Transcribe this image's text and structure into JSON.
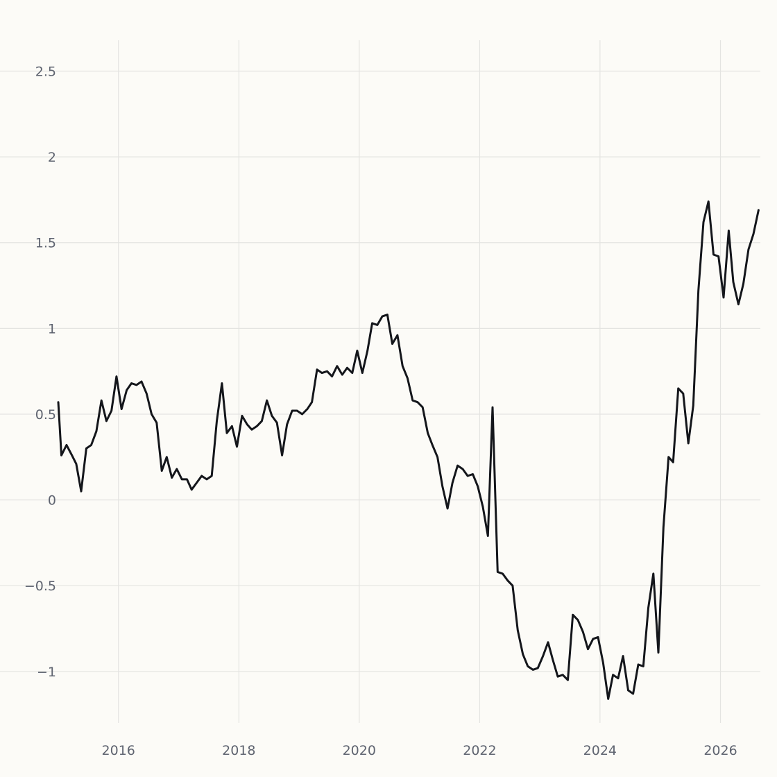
{
  "chart_data": {
    "type": "line",
    "title": "",
    "xlabel": "",
    "ylabel": "",
    "x_axis": {
      "type": "date",
      "range": [
        "2015-01-01",
        "2026-08-31"
      ],
      "tick_labels": [
        "2016",
        "2018",
        "2020",
        "2022",
        "2024",
        "2026"
      ]
    },
    "y_axis": {
      "range": [
        -1.3,
        2.68
      ],
      "ticks": [
        -1,
        -0.5,
        0,
        0.5,
        1,
        1.5,
        2,
        2.5
      ],
      "tick_labels": [
        "−1",
        "−0.5",
        "0",
        "0.5",
        "1",
        "1.5",
        "2",
        "2.5"
      ]
    },
    "grid": true,
    "legend": "none",
    "colors": {
      "background": "#fcfbf7",
      "line": "#14161b",
      "grid": "#e4e4e1",
      "tick_text": "#5f6470"
    },
    "series": [
      {
        "points": [
          [
            "2015-01-01",
            0.57
          ],
          [
            "2015-01-20",
            0.26
          ],
          [
            "2015-02-20",
            0.32
          ],
          [
            "2015-03-25",
            0.26
          ],
          [
            "2015-04-20",
            0.21
          ],
          [
            "2015-05-20",
            0.05
          ],
          [
            "2015-06-20",
            0.3
          ],
          [
            "2015-07-20",
            0.32
          ],
          [
            "2015-08-20",
            0.4
          ],
          [
            "2015-09-20",
            0.58
          ],
          [
            "2015-10-20",
            0.46
          ],
          [
            "2015-11-20",
            0.52
          ],
          [
            "2015-12-20",
            0.72
          ],
          [
            "2016-01-20",
            0.53
          ],
          [
            "2016-02-20",
            0.64
          ],
          [
            "2016-03-20",
            0.68
          ],
          [
            "2016-04-20",
            0.67
          ],
          [
            "2016-05-20",
            0.69
          ],
          [
            "2016-06-20",
            0.62
          ],
          [
            "2016-07-20",
            0.5
          ],
          [
            "2016-08-20",
            0.45
          ],
          [
            "2016-09-20",
            0.17
          ],
          [
            "2016-10-20",
            0.25
          ],
          [
            "2016-11-20",
            0.13
          ],
          [
            "2016-12-20",
            0.18
          ],
          [
            "2017-01-20",
            0.12
          ],
          [
            "2017-02-20",
            0.12
          ],
          [
            "2017-03-20",
            0.06
          ],
          [
            "2017-04-20",
            0.1
          ],
          [
            "2017-05-20",
            0.14
          ],
          [
            "2017-06-20",
            0.12
          ],
          [
            "2017-07-20",
            0.14
          ],
          [
            "2017-08-20",
            0.46
          ],
          [
            "2017-09-20",
            0.68
          ],
          [
            "2017-10-20",
            0.39
          ],
          [
            "2017-11-20",
            0.43
          ],
          [
            "2017-12-20",
            0.31
          ],
          [
            "2018-01-20",
            0.49
          ],
          [
            "2018-02-20",
            0.44
          ],
          [
            "2018-03-20",
            0.41
          ],
          [
            "2018-04-20",
            0.43
          ],
          [
            "2018-05-20",
            0.46
          ],
          [
            "2018-06-20",
            0.58
          ],
          [
            "2018-07-20",
            0.49
          ],
          [
            "2018-08-20",
            0.45
          ],
          [
            "2018-09-20",
            0.26
          ],
          [
            "2018-10-20",
            0.44
          ],
          [
            "2018-11-20",
            0.52
          ],
          [
            "2018-12-20",
            0.52
          ],
          [
            "2019-01-20",
            0.5
          ],
          [
            "2019-02-20",
            0.53
          ],
          [
            "2019-03-20",
            0.57
          ],
          [
            "2019-04-20",
            0.76
          ],
          [
            "2019-05-20",
            0.74
          ],
          [
            "2019-06-20",
            0.75
          ],
          [
            "2019-07-20",
            0.72
          ],
          [
            "2019-08-20",
            0.78
          ],
          [
            "2019-09-20",
            0.73
          ],
          [
            "2019-10-20",
            0.77
          ],
          [
            "2019-11-20",
            0.74
          ],
          [
            "2019-12-20",
            0.87
          ],
          [
            "2020-01-20",
            0.74
          ],
          [
            "2020-02-20",
            0.87
          ],
          [
            "2020-03-20",
            1.03
          ],
          [
            "2020-04-20",
            1.02
          ],
          [
            "2020-05-20",
            1.07
          ],
          [
            "2020-06-20",
            1.08
          ],
          [
            "2020-07-20",
            0.91
          ],
          [
            "2020-08-20",
            0.96
          ],
          [
            "2020-09-20",
            0.78
          ],
          [
            "2020-10-20",
            0.71
          ],
          [
            "2020-11-20",
            0.58
          ],
          [
            "2020-12-20",
            0.57
          ],
          [
            "2021-01-20",
            0.54
          ],
          [
            "2021-02-20",
            0.39
          ],
          [
            "2021-03-20",
            0.32
          ],
          [
            "2021-04-20",
            0.25
          ],
          [
            "2021-05-20",
            0.08
          ],
          [
            "2021-06-20",
            -0.05
          ],
          [
            "2021-07-20",
            0.1
          ],
          [
            "2021-08-20",
            0.2
          ],
          [
            "2021-09-20",
            0.18
          ],
          [
            "2021-10-20",
            0.14
          ],
          [
            "2021-11-20",
            0.15
          ],
          [
            "2021-12-20",
            0.08
          ],
          [
            "2022-01-20",
            -0.04
          ],
          [
            "2022-02-20",
            -0.21
          ],
          [
            "2022-03-20",
            0.54
          ],
          [
            "2022-04-20",
            -0.42
          ],
          [
            "2022-05-20",
            -0.43
          ],
          [
            "2022-06-20",
            -0.47
          ],
          [
            "2022-07-20",
            -0.5
          ],
          [
            "2022-08-20",
            -0.76
          ],
          [
            "2022-09-20",
            -0.9
          ],
          [
            "2022-10-20",
            -0.97
          ],
          [
            "2022-11-20",
            -0.99
          ],
          [
            "2022-12-20",
            -0.98
          ],
          [
            "2023-01-20",
            -0.91
          ],
          [
            "2023-02-20",
            -0.83
          ],
          [
            "2023-03-20",
            -0.93
          ],
          [
            "2023-04-20",
            -1.03
          ],
          [
            "2023-05-20",
            -1.02
          ],
          [
            "2023-06-20",
            -1.05
          ],
          [
            "2023-07-20",
            -0.67
          ],
          [
            "2023-08-20",
            -0.7
          ],
          [
            "2023-09-20",
            -0.77
          ],
          [
            "2023-10-20",
            -0.87
          ],
          [
            "2023-11-20",
            -0.81
          ],
          [
            "2023-12-20",
            -0.8
          ],
          [
            "2024-01-20",
            -0.95
          ],
          [
            "2024-02-20",
            -1.16
          ],
          [
            "2024-03-20",
            -1.02
          ],
          [
            "2024-04-20",
            -1.04
          ],
          [
            "2024-05-20",
            -0.91
          ],
          [
            "2024-06-20",
            -1.11
          ],
          [
            "2024-07-20",
            -1.13
          ],
          [
            "2024-08-20",
            -0.96
          ],
          [
            "2024-09-20",
            -0.97
          ],
          [
            "2024-10-20",
            -0.63
          ],
          [
            "2024-11-20",
            -0.43
          ],
          [
            "2024-12-20",
            -0.89
          ],
          [
            "2025-01-20",
            -0.16
          ],
          [
            "2025-02-20",
            0.25
          ],
          [
            "2025-03-20",
            0.22
          ],
          [
            "2025-04-20",
            0.65
          ],
          [
            "2025-05-20",
            0.62
          ],
          [
            "2025-06-20",
            0.33
          ],
          [
            "2025-07-20",
            0.55
          ],
          [
            "2025-08-20",
            1.22
          ],
          [
            "2025-09-20",
            1.62
          ],
          [
            "2025-10-20",
            1.74
          ],
          [
            "2025-11-20",
            1.43
          ],
          [
            "2025-12-20",
            1.42
          ],
          [
            "2026-01-20",
            1.18
          ],
          [
            "2026-02-20",
            1.57
          ],
          [
            "2026-03-20",
            1.27
          ],
          [
            "2026-04-20",
            1.14
          ],
          [
            "2026-05-20",
            1.26
          ],
          [
            "2026-06-20",
            1.46
          ],
          [
            "2026-07-20",
            1.55
          ],
          [
            "2026-08-20",
            1.69
          ]
        ]
      }
    ]
  }
}
